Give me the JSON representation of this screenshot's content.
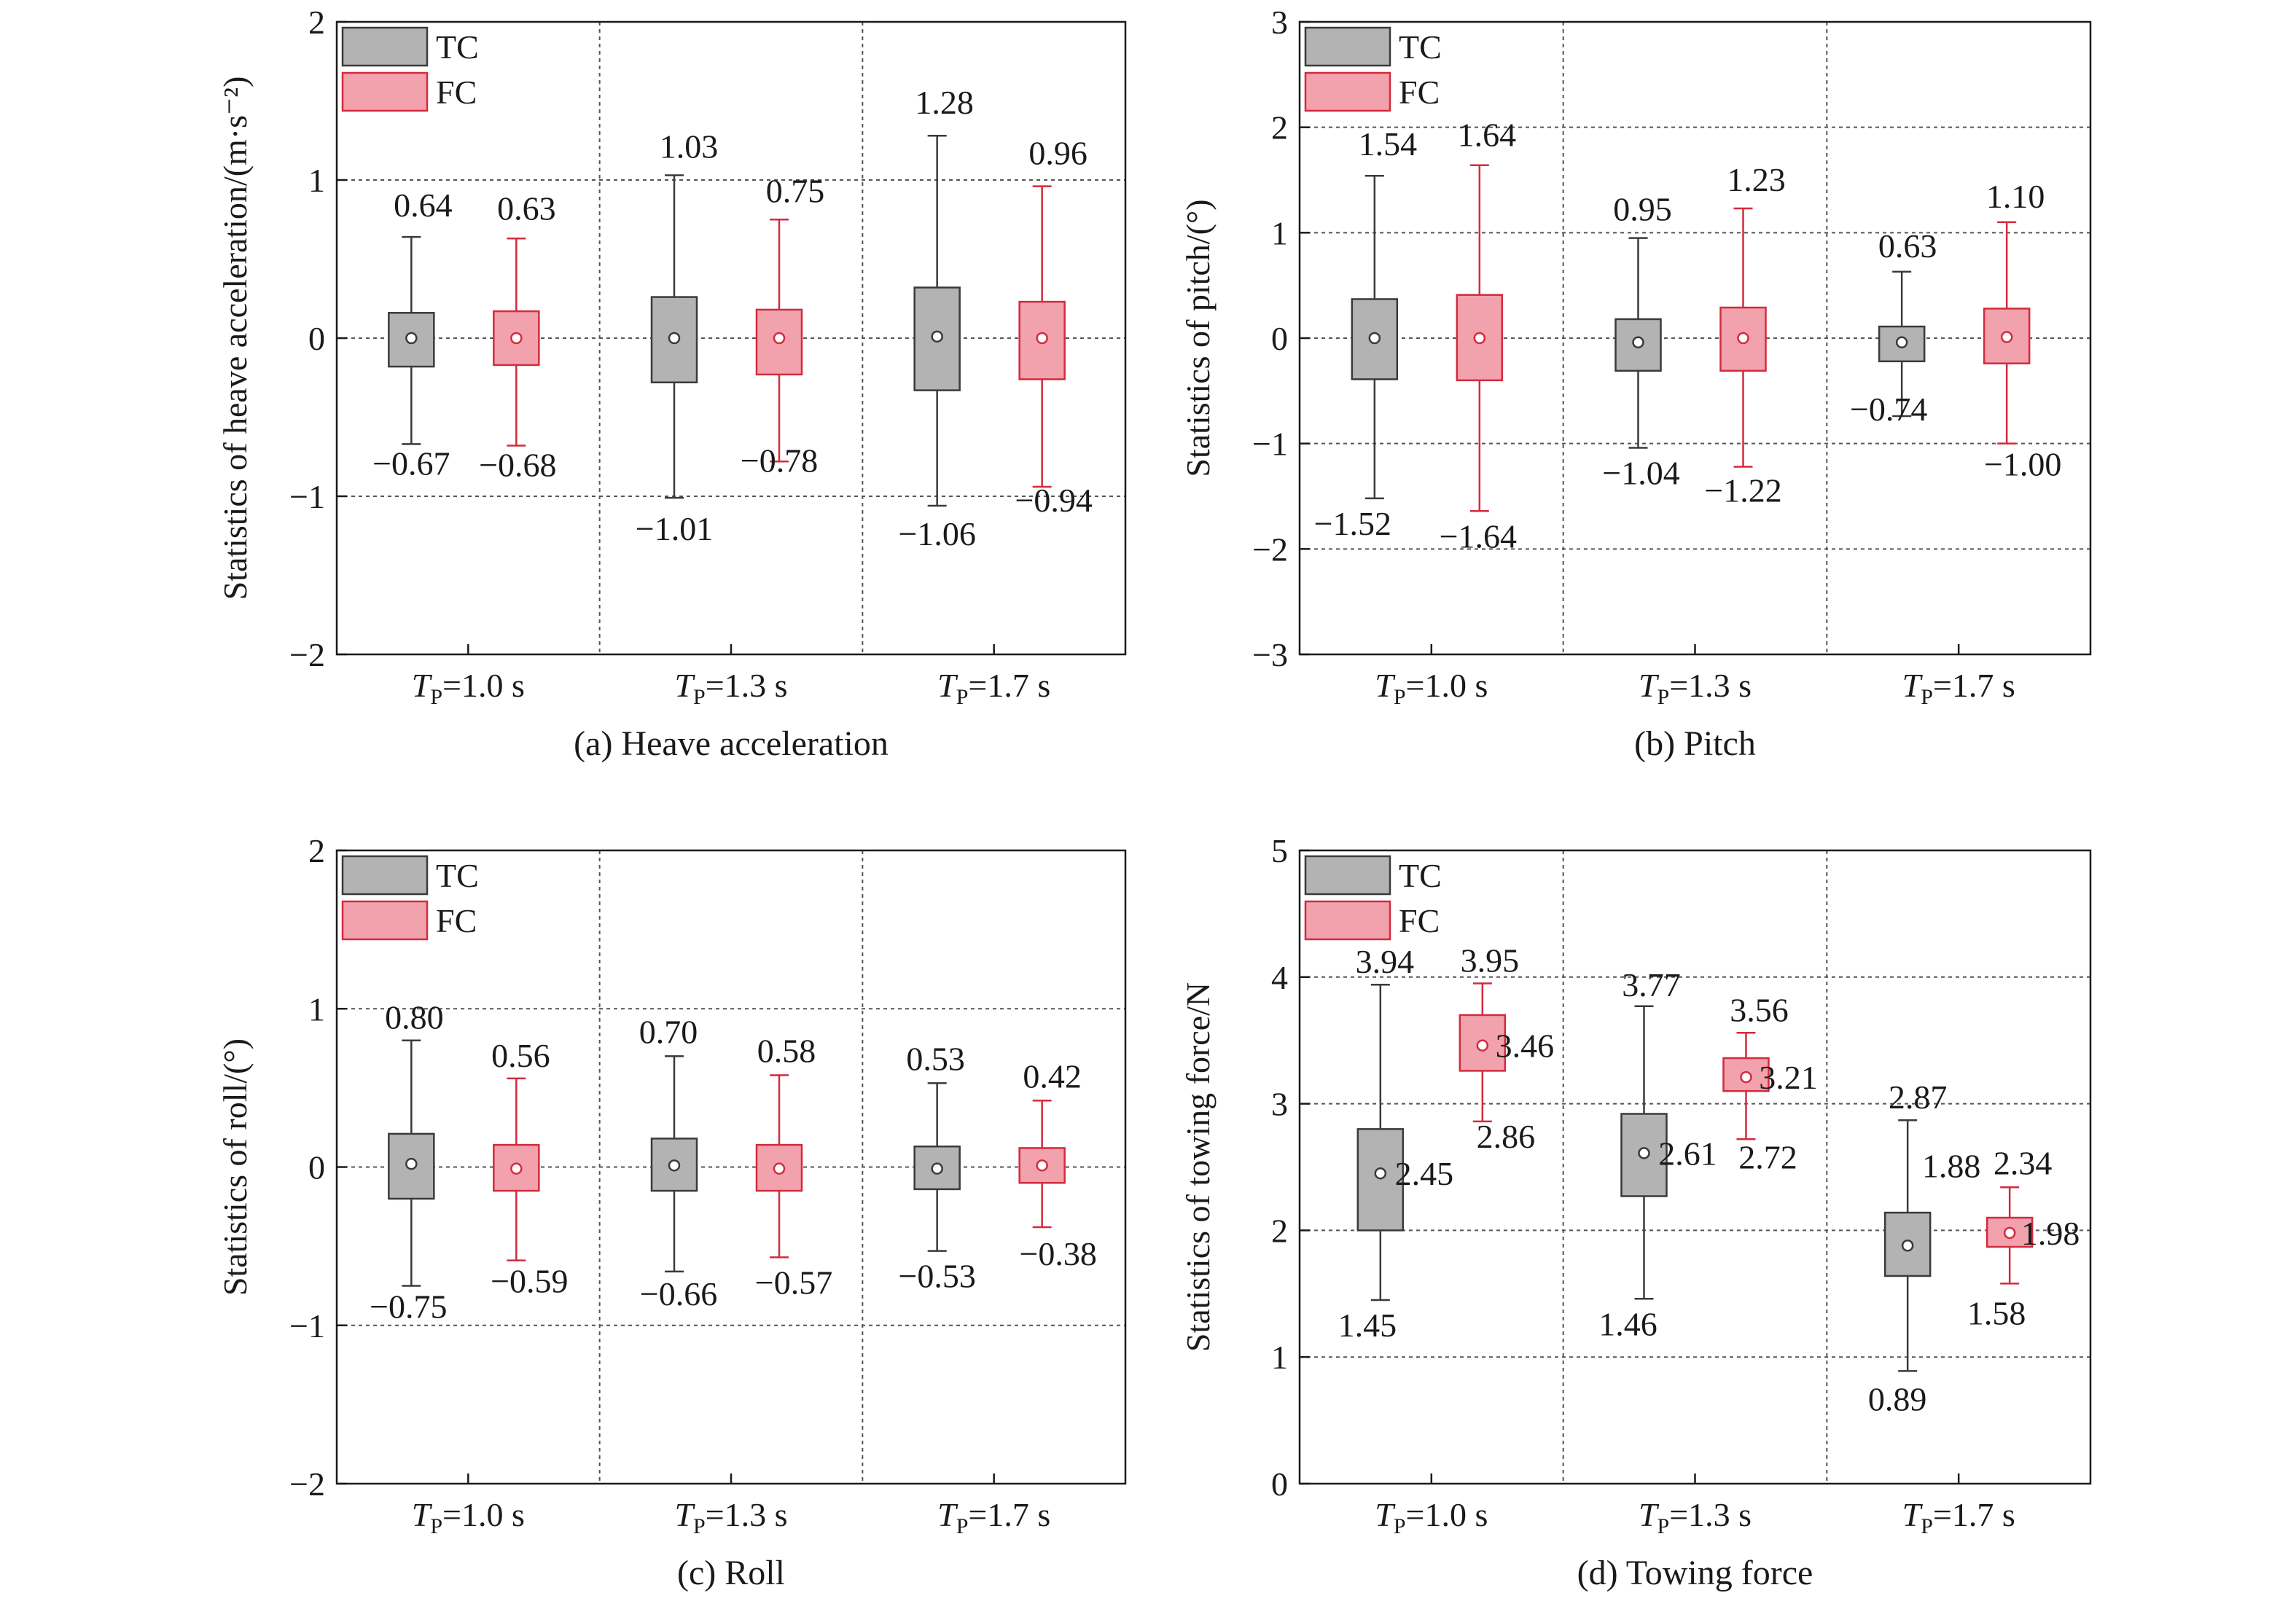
{
  "legend": {
    "tc_label": "TC",
    "fc_label": "FC"
  },
  "colors": {
    "tc_fill": "#b3b3b3",
    "tc_stroke": "#3a3a3a",
    "fc_fill": "#f2a2ad",
    "fc_stroke": "#d42a3c",
    "grid": "#555555",
    "axis": "#1a1a1a"
  },
  "chart_data": [
    {
      "panel": "a",
      "type": "box",
      "caption": "(a) Heave acceleration",
      "ylabel": "Statistics of heave acceleration/(m·s⁻²)",
      "ylim": [
        -2,
        2
      ],
      "yticks": [
        -2,
        -1,
        0,
        1,
        2
      ],
      "grid": true,
      "legend_position": "top-left",
      "categories": [
        "1.0 s",
        "1.3 s",
        "1.7 s"
      ],
      "category_prefix": "T",
      "category_subscript": "P",
      "series": [
        {
          "name": "TC",
          "boxes": [
            {
              "min": -0.67,
              "q1": -0.18,
              "median": 0.0,
              "q3": 0.16,
              "max": 0.64,
              "min_label": "−0.67",
              "max_label": "0.64"
            },
            {
              "min": -1.01,
              "q1": -0.28,
              "median": 0.0,
              "q3": 0.26,
              "max": 1.03,
              "min_label": "−1.01",
              "max_label": "1.03"
            },
            {
              "min": -1.06,
              "q1": -0.33,
              "median": 0.01,
              "q3": 0.32,
              "max": 1.28,
              "min_label": "−1.06",
              "max_label": "1.28"
            }
          ]
        },
        {
          "name": "FC",
          "boxes": [
            {
              "min": -0.68,
              "q1": -0.17,
              "median": 0.0,
              "q3": 0.17,
              "max": 0.63,
              "min_label": "−0.68",
              "max_label": "0.63"
            },
            {
              "min": -0.78,
              "q1": -0.23,
              "median": 0.0,
              "q3": 0.18,
              "max": 0.75,
              "min_label": "−0.78",
              "max_label": "0.75"
            },
            {
              "min": -0.94,
              "q1": -0.26,
              "median": 0.0,
              "q3": 0.23,
              "max": 0.96,
              "min_label": "−0.94",
              "max_label": "0.96"
            }
          ]
        }
      ]
    },
    {
      "panel": "b",
      "type": "box",
      "caption": "(b) Pitch",
      "ylabel": "Statistics of pitch/(°)",
      "ylim": [
        -3,
        3
      ],
      "yticks": [
        -3,
        -2,
        -1,
        0,
        1,
        2,
        3
      ],
      "grid": true,
      "legend_position": "top-left",
      "categories": [
        "1.0 s",
        "1.3 s",
        "1.7 s"
      ],
      "category_prefix": "T",
      "category_subscript": "P",
      "series": [
        {
          "name": "TC",
          "boxes": [
            {
              "min": -1.52,
              "q1": -0.39,
              "median": 0.0,
              "q3": 0.37,
              "max": 1.54,
              "min_label": "−1.52",
              "max_label": "1.54"
            },
            {
              "min": -1.04,
              "q1": -0.31,
              "median": -0.04,
              "q3": 0.18,
              "max": 0.95,
              "min_label": "−1.04",
              "max_label": "0.95"
            },
            {
              "min": -0.74,
              "q1": -0.22,
              "median": -0.04,
              "q3": 0.11,
              "max": 0.63,
              "min_label": "−0.74",
              "max_label": "0.63"
            }
          ]
        },
        {
          "name": "FC",
          "boxes": [
            {
              "min": -1.64,
              "q1": -0.4,
              "median": 0.0,
              "q3": 0.41,
              "max": 1.64,
              "min_label": "−1.64",
              "max_label": "1.64"
            },
            {
              "min": -1.22,
              "q1": -0.31,
              "median": 0.0,
              "q3": 0.29,
              "max": 1.23,
              "min_label": "−1.22",
              "max_label": "1.23"
            },
            {
              "min": -1.0,
              "q1": -0.24,
              "median": 0.01,
              "q3": 0.28,
              "max": 1.1,
              "min_label": "−1.00",
              "max_label": "1.10"
            }
          ]
        }
      ]
    },
    {
      "panel": "c",
      "type": "box",
      "caption": "(c) Roll",
      "ylabel": "Statistics of roll/(°)",
      "ylim": [
        -2,
        2
      ],
      "yticks": [
        -2,
        -1,
        0,
        1,
        2
      ],
      "grid": true,
      "legend_position": "top-left",
      "categories": [
        "1.0 s",
        "1.3 s",
        "1.7 s"
      ],
      "category_prefix": "T",
      "category_subscript": "P",
      "series": [
        {
          "name": "TC",
          "boxes": [
            {
              "min": -0.75,
              "q1": -0.2,
              "median": 0.02,
              "q3": 0.21,
              "max": 0.8,
              "min_label": "−0.75",
              "max_label": "0.80"
            },
            {
              "min": -0.66,
              "q1": -0.15,
              "median": 0.01,
              "q3": 0.18,
              "max": 0.7,
              "min_label": "−0.66",
              "max_label": "0.70"
            },
            {
              "min": -0.53,
              "q1": -0.14,
              "median": -0.01,
              "q3": 0.13,
              "max": 0.53,
              "min_label": "−0.53",
              "max_label": "0.53"
            }
          ]
        },
        {
          "name": "FC",
          "boxes": [
            {
              "min": -0.59,
              "q1": -0.15,
              "median": -0.01,
              "q3": 0.14,
              "max": 0.56,
              "min_label": "−0.59",
              "max_label": "0.56"
            },
            {
              "min": -0.57,
              "q1": -0.15,
              "median": -0.01,
              "q3": 0.14,
              "max": 0.58,
              "min_label": "−0.57",
              "max_label": "0.58"
            },
            {
              "min": -0.38,
              "q1": -0.1,
              "median": 0.01,
              "q3": 0.12,
              "max": 0.42,
              "min_label": "−0.38",
              "max_label": "0.42"
            }
          ]
        }
      ]
    },
    {
      "panel": "d",
      "type": "box",
      "caption": "(d) Towing force",
      "ylabel": "Statistics of towing force/N",
      "ylim": [
        0,
        5
      ],
      "yticks": [
        0,
        1,
        2,
        3,
        4,
        5
      ],
      "grid": true,
      "legend_position": "top-left",
      "categories": [
        "1.0 s",
        "1.3 s",
        "1.7 s"
      ],
      "category_prefix": "T",
      "category_subscript": "P",
      "series": [
        {
          "name": "TC",
          "boxes": [
            {
              "min": 1.45,
              "q1": 2.0,
              "median": 2.45,
              "q3": 2.8,
              "max": 3.94,
              "min_label": "1.45",
              "max_label": "3.94",
              "median_label": "2.45"
            },
            {
              "min": 1.46,
              "q1": 2.27,
              "median": 2.61,
              "q3": 2.92,
              "max": 3.77,
              "min_label": "1.46",
              "max_label": "3.77",
              "median_label": "2.61"
            },
            {
              "min": 0.89,
              "q1": 1.64,
              "median": 1.88,
              "q3": 2.14,
              "max": 2.87,
              "min_label": "0.89",
              "max_label": "2.87",
              "median_label": "1.88"
            }
          ]
        },
        {
          "name": "FC",
          "boxes": [
            {
              "min": 2.86,
              "q1": 3.26,
              "median": 3.46,
              "q3": 3.7,
              "max": 3.95,
              "min_label": "2.86",
              "max_label": "3.95",
              "median_label": "3.46"
            },
            {
              "min": 2.72,
              "q1": 3.1,
              "median": 3.21,
              "q3": 3.36,
              "max": 3.56,
              "min_label": "2.72",
              "max_label": "3.56",
              "median_label": "3.21"
            },
            {
              "min": 1.58,
              "q1": 1.87,
              "median": 1.98,
              "q3": 2.1,
              "max": 2.34,
              "min_label": "1.58",
              "max_label": "2.34",
              "median_label": "1.98"
            }
          ]
        }
      ]
    }
  ]
}
